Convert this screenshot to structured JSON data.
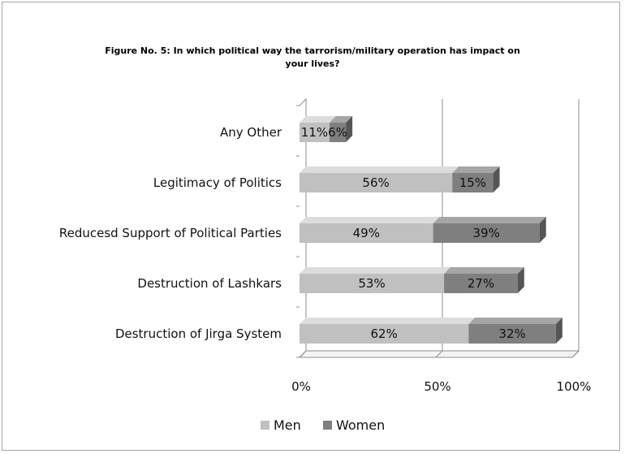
{
  "chart_data": {
    "type": "bar",
    "orientation": "horizontal",
    "stacked": true,
    "title_lines": [
      "Figure No. 5: In which political way the tarrorism/military operation has impact on",
      "your lives?"
    ],
    "categories": [
      "Any Other",
      "Legitimacy of Politics",
      "Reducesd Support of Political Parties",
      "Destruction of Lashkars",
      "Destruction of Jirga System"
    ],
    "series": [
      {
        "name": "Men",
        "values": [
          11,
          56,
          49,
          53,
          62
        ],
        "labels": [
          "11%",
          "56%",
          "49%",
          "53%",
          "62%"
        ],
        "color": "#c0c0c0",
        "top_color": "#dcdcdc",
        "side_color": "#9a9a9a"
      },
      {
        "name": "Women",
        "values": [
          6,
          15,
          39,
          27,
          32
        ],
        "labels": [
          "6%",
          "15%",
          "39%",
          "27%",
          "32%"
        ],
        "color": "#7f7f7f",
        "top_color": "#a5a5a5",
        "side_color": "#555555"
      }
    ],
    "x_ticks": [
      "0%",
      "50%",
      "100%"
    ],
    "xlim": [
      0,
      100
    ],
    "grid": true,
    "legend": {
      "position": "bottom",
      "entries": [
        "Men",
        "Women"
      ]
    }
  }
}
